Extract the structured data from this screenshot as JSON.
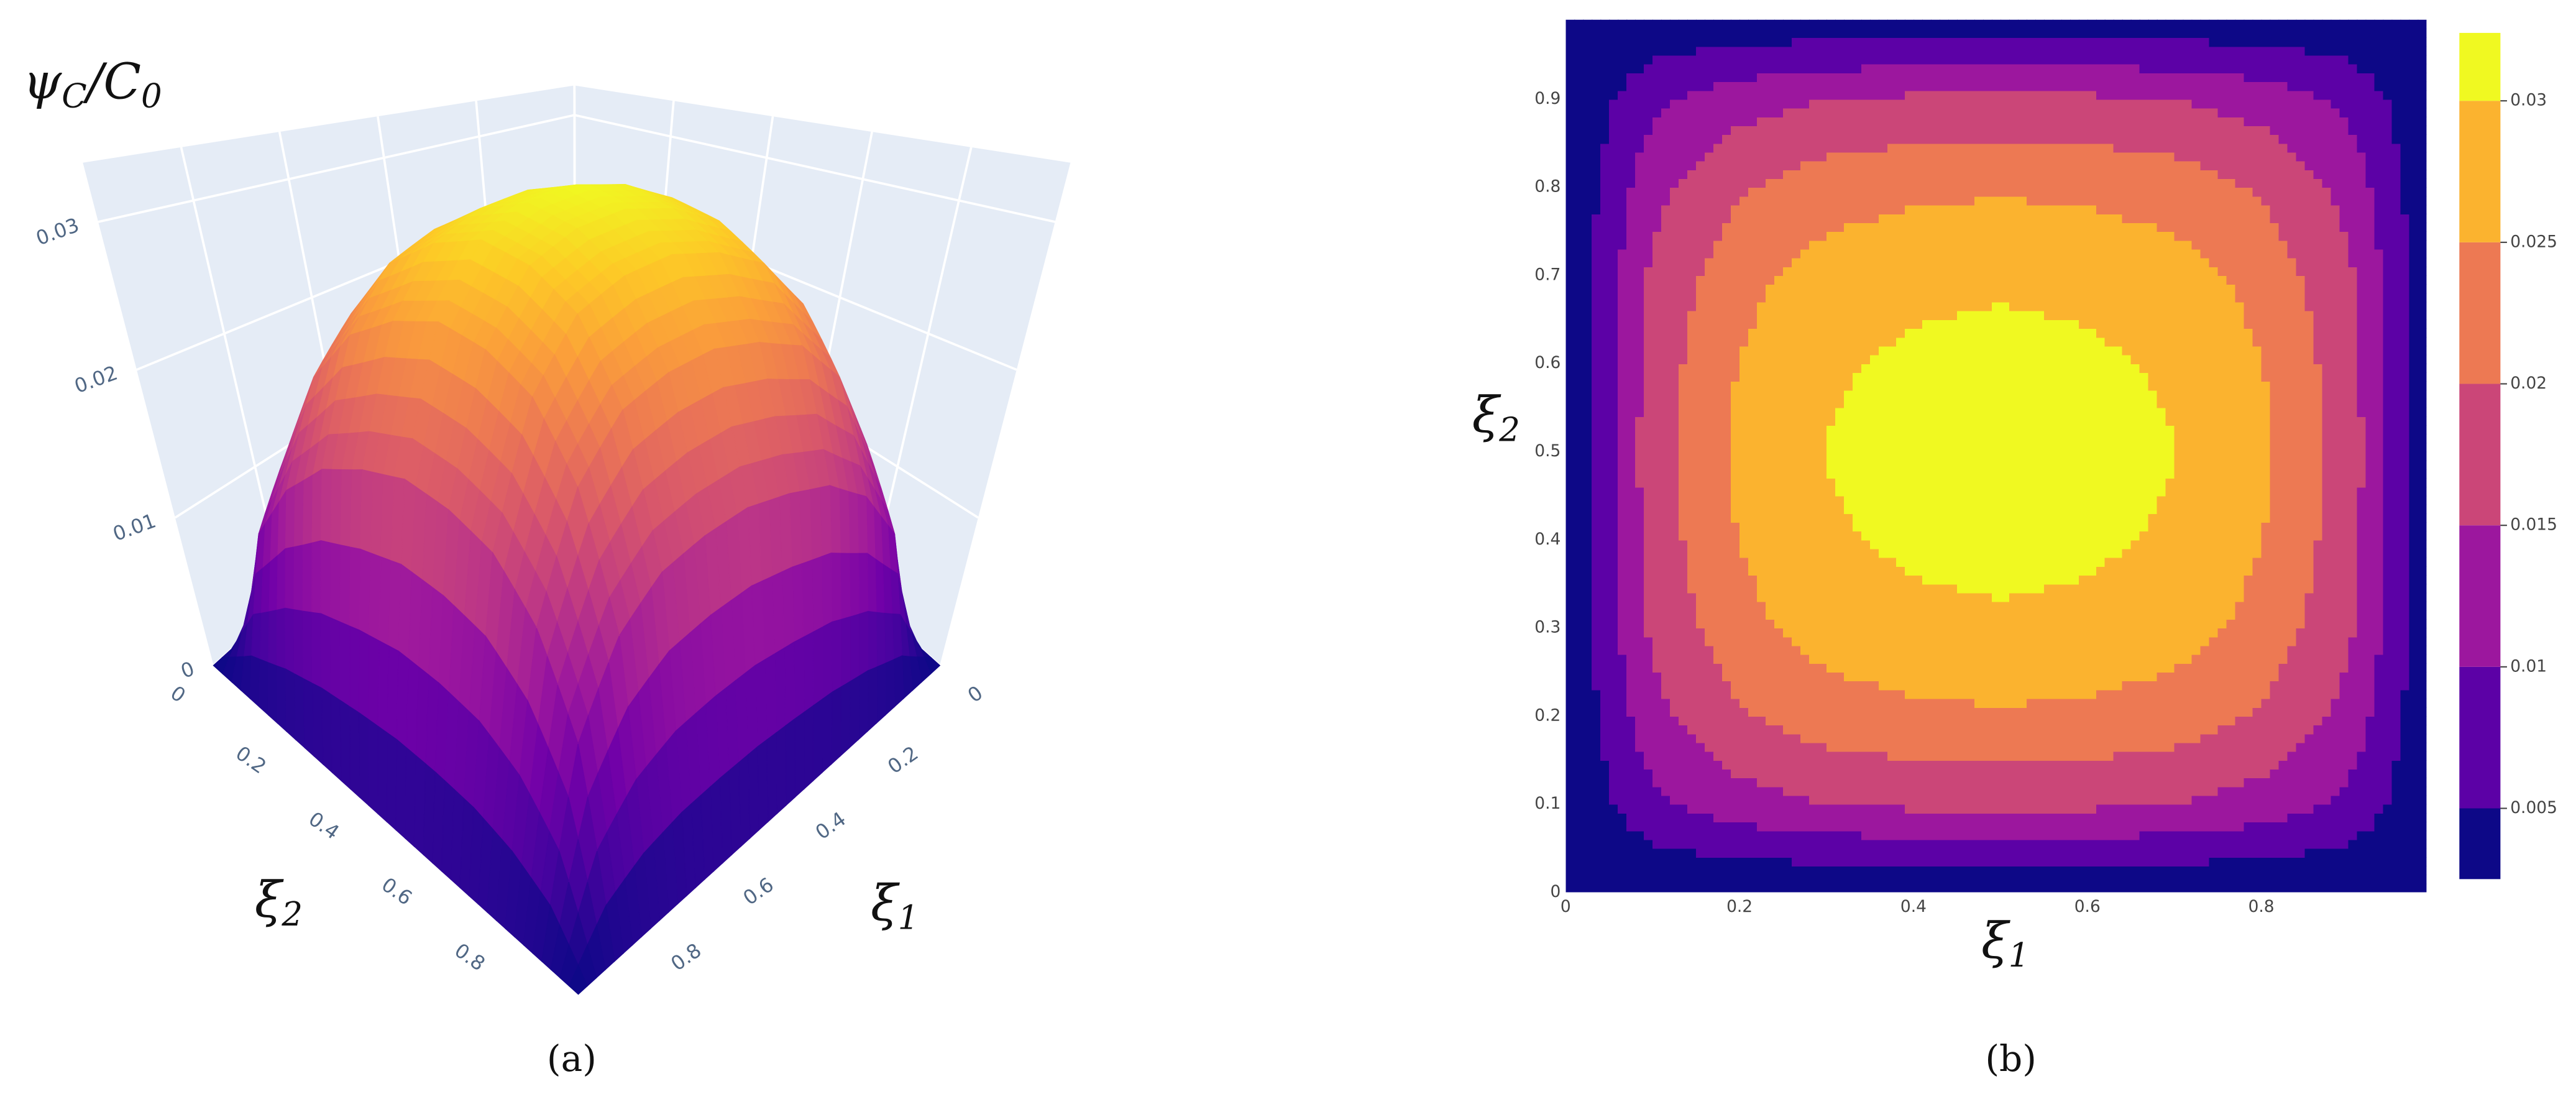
{
  "chart_data": [
    {
      "type": "surface",
      "panel": "(a)",
      "zlabel": [
        "ψ",
        "C",
        "/C",
        "0"
      ],
      "xlabel": [
        "ξ",
        "1"
      ],
      "ylabel": [
        "ξ",
        "2"
      ],
      "x": [
        0,
        0.1,
        0.2,
        0.3,
        0.4,
        0.5,
        0.6,
        0.7,
        0.8,
        0.9,
        1
      ],
      "y": [
        0,
        0.1,
        0.2,
        0.3,
        0.4,
        0.5,
        0.6,
        0.7,
        0.8,
        0.9,
        1
      ],
      "z": [
        [
          0,
          0,
          0,
          0,
          0,
          0,
          0,
          0,
          0,
          0,
          0
        ],
        [
          0,
          0.0089,
          0.013,
          0.0151,
          0.0159,
          0.0163,
          0.0159,
          0.0151,
          0.013,
          0.0089,
          0
        ],
        [
          0,
          0.0134,
          0.0195,
          0.0227,
          0.0239,
          0.0244,
          0.0239,
          0.0227,
          0.0195,
          0.0134,
          0
        ],
        [
          0,
          0.0161,
          0.0234,
          0.0272,
          0.0287,
          0.0293,
          0.0287,
          0.0272,
          0.0234,
          0.0161,
          0
        ],
        [
          0,
          0.0173,
          0.0252,
          0.0293,
          0.0309,
          0.0315,
          0.0309,
          0.0293,
          0.0252,
          0.0173,
          0
        ],
        [
          0,
          0.0179,
          0.026,
          0.0302,
          0.0319,
          0.0325,
          0.0319,
          0.0302,
          0.026,
          0.0179,
          0
        ],
        [
          0,
          0.0173,
          0.0252,
          0.0293,
          0.0309,
          0.0315,
          0.0309,
          0.0293,
          0.0252,
          0.0173,
          0
        ],
        [
          0,
          0.0161,
          0.0234,
          0.0272,
          0.0287,
          0.0293,
          0.0287,
          0.0272,
          0.0234,
          0.0161,
          0
        ],
        [
          0,
          0.0134,
          0.0195,
          0.0227,
          0.0239,
          0.0244,
          0.0239,
          0.0227,
          0.0195,
          0.0134,
          0
        ],
        [
          0,
          0.0089,
          0.013,
          0.0151,
          0.0159,
          0.0163,
          0.0159,
          0.0151,
          0.013,
          0.0089,
          0
        ],
        [
          0,
          0,
          0,
          0,
          0,
          0,
          0,
          0,
          0,
          0,
          0
        ]
      ],
      "xlim": [
        0,
        1
      ],
      "ylim": [
        0,
        1
      ],
      "zlim": [
        0,
        0.034
      ],
      "xticks": [
        0,
        0.2,
        0.4,
        0.6,
        0.8
      ],
      "yticks": [
        0,
        0.2,
        0.4,
        0.6,
        0.8
      ],
      "zticks": [
        0,
        0.01,
        0.02,
        0.03
      ],
      "colorscale": [
        "#0d0887",
        "#46039f",
        "#7201a8",
        "#9c179e",
        "#bd3786",
        "#d8576b",
        "#ed7953",
        "#fb9f3a",
        "#fdca26",
        "#f0f921"
      ],
      "grid": true
    },
    {
      "type": "contour",
      "panel": "(b)",
      "xlabel": [
        "ξ",
        "1"
      ],
      "ylabel": [
        "ξ",
        "2"
      ],
      "x": [
        0,
        0.1,
        0.2,
        0.3,
        0.4,
        0.5,
        0.6,
        0.7,
        0.8,
        0.9,
        1
      ],
      "y": [
        0,
        0.1,
        0.2,
        0.3,
        0.4,
        0.5,
        0.6,
        0.7,
        0.8,
        0.9,
        1
      ],
      "z": [
        [
          0,
          0,
          0,
          0,
          0,
          0,
          0,
          0,
          0,
          0,
          0
        ],
        [
          0,
          0.0089,
          0.013,
          0.0151,
          0.0159,
          0.0163,
          0.0159,
          0.0151,
          0.013,
          0.0089,
          0
        ],
        [
          0,
          0.0134,
          0.0195,
          0.0227,
          0.0239,
          0.0244,
          0.0239,
          0.0227,
          0.0195,
          0.0134,
          0
        ],
        [
          0,
          0.0161,
          0.0234,
          0.0272,
          0.0287,
          0.0293,
          0.0287,
          0.0272,
          0.0234,
          0.0161,
          0
        ],
        [
          0,
          0.0173,
          0.0252,
          0.0293,
          0.0309,
          0.0315,
          0.0309,
          0.0293,
          0.0252,
          0.0173,
          0
        ],
        [
          0,
          0.0179,
          0.026,
          0.0302,
          0.0319,
          0.0325,
          0.0319,
          0.0302,
          0.026,
          0.0179,
          0
        ],
        [
          0,
          0.0173,
          0.0252,
          0.0293,
          0.0309,
          0.0315,
          0.0309,
          0.0293,
          0.0252,
          0.0173,
          0
        ],
        [
          0,
          0.0161,
          0.0234,
          0.0272,
          0.0287,
          0.0293,
          0.0287,
          0.0272,
          0.0234,
          0.0161,
          0
        ],
        [
          0,
          0.0134,
          0.0195,
          0.0227,
          0.0239,
          0.0244,
          0.0239,
          0.0227,
          0.0195,
          0.0134,
          0
        ],
        [
          0,
          0.0089,
          0.013,
          0.0151,
          0.0159,
          0.0163,
          0.0159,
          0.0151,
          0.013,
          0.0089,
          0
        ],
        [
          0,
          0,
          0,
          0,
          0,
          0,
          0,
          0,
          0,
          0,
          0
        ]
      ],
      "xlim": [
        0,
        0.99
      ],
      "ylim": [
        0,
        0.99
      ],
      "xticks": [
        0,
        0.2,
        0.4,
        0.6,
        0.8
      ],
      "yticks": [
        0,
        0.1,
        0.2,
        0.3,
        0.4,
        0.5,
        0.6,
        0.7,
        0.8,
        0.9
      ],
      "levels": [
        0.005,
        0.01,
        0.015,
        0.02,
        0.025,
        0.03
      ],
      "colors": [
        "#0d0887",
        "#5c01a6",
        "#9c179e",
        "#cb4678",
        "#ed7953",
        "#fbb32f",
        "#f0f921"
      ],
      "zlim": [
        0.0025,
        0.0324
      ]
    }
  ]
}
